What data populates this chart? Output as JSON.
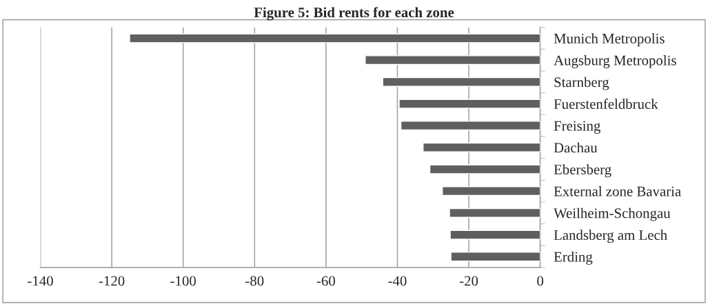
{
  "chart_data": {
    "type": "bar",
    "orientation": "horizontal",
    "title": "Figure 5: Bid rents for each zone",
    "categories": [
      "Munich Metropolis",
      "Augsburg Metropolis",
      "Starnberg",
      "Fuerstenfeldbruck",
      "Freising",
      "Dachau",
      "Ebersberg",
      "External zone Bavaria",
      "Weilheim-Schongau",
      "Landsberg am Lech",
      "Erding"
    ],
    "values": [
      -115.0,
      -49.0,
      -44.1,
      -39.5,
      -39.0,
      -32.8,
      -30.9,
      -27.4,
      -25.4,
      -25.2,
      -25.0
    ],
    "color": "#5f5f5f",
    "xlim": [
      -140,
      0
    ],
    "xticks": [
      -140,
      -120,
      -100,
      -80,
      -60,
      -40,
      -20,
      0
    ],
    "grid": "x"
  }
}
